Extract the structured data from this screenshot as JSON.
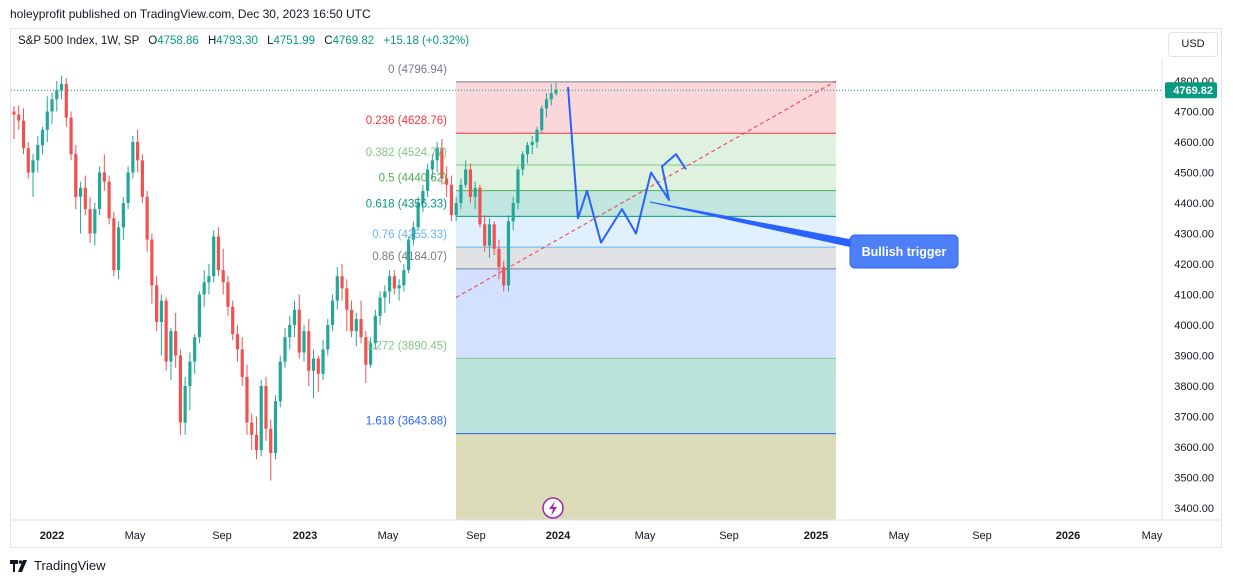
{
  "header": {
    "publisher": "holeyprofit published on TradingView.com, Dec 30, 2023 16:50 UTC"
  },
  "legend": {
    "symbol": "S&P 500 Index, 1W, SP",
    "open_label": "O",
    "open": "4758.86",
    "high_label": "H",
    "high": "4793.30",
    "low_label": "L",
    "low": "4751.99",
    "close_label": "C",
    "close": "4769.82",
    "change": "+15.18 (+0.32%)"
  },
  "currency_button": "USD",
  "footer": {
    "brand": "TradingView"
  },
  "chart_data": {
    "type": "candlestick",
    "symbol": "S&P 500 Index",
    "interval": "1W",
    "ylim": [
      3350,
      4830
    ],
    "y_ticks": [
      "3400.00",
      "3500.00",
      "3600.00",
      "3700.00",
      "3800.00",
      "3900.00",
      "4000.00",
      "4100.00",
      "4200.00",
      "4300.00",
      "4400.00",
      "4500.00",
      "4600.00",
      "4700.00",
      "4800.00"
    ],
    "x_ticks": [
      "2022",
      "May",
      "Sep",
      "2023",
      "May",
      "Sep",
      "2024",
      "May",
      "Sep",
      "2025",
      "May",
      "Sep",
      "2026",
      "May"
    ],
    "last_price": "4769.82",
    "colors": {
      "up": "#26a69a",
      "down": "#ef5350"
    },
    "candles_weekly": [
      [
        4700,
        4718,
        4610,
        4690
      ],
      [
        4690,
        4720,
        4640,
        4670
      ],
      [
        4670,
        4710,
        4560,
        4580
      ],
      [
        4580,
        4600,
        4480,
        4500
      ],
      [
        4500,
        4560,
        4420,
        4540
      ],
      [
        4540,
        4620,
        4500,
        4590
      ],
      [
        4590,
        4650,
        4560,
        4640
      ],
      [
        4640,
        4750,
        4600,
        4700
      ],
      [
        4700,
        4760,
        4660,
        4740
      ],
      [
        4740,
        4800,
        4700,
        4770
      ],
      [
        4770,
        4818,
        4740,
        4790
      ],
      [
        4790,
        4810,
        4650,
        4680
      ],
      [
        4680,
        4700,
        4540,
        4560
      ],
      [
        4560,
        4590,
        4380,
        4420
      ],
      [
        4420,
        4470,
        4300,
        4450
      ],
      [
        4450,
        4490,
        4360,
        4380
      ],
      [
        4380,
        4420,
        4270,
        4300
      ],
      [
        4300,
        4400,
        4260,
        4380
      ],
      [
        4380,
        4520,
        4360,
        4500
      ],
      [
        4500,
        4560,
        4440,
        4470
      ],
      [
        4470,
        4490,
        4330,
        4350
      ],
      [
        4350,
        4370,
        4160,
        4180
      ],
      [
        4180,
        4340,
        4150,
        4320
      ],
      [
        4320,
        4420,
        4280,
        4400
      ],
      [
        4400,
        4520,
        4380,
        4500
      ],
      [
        4500,
        4620,
        4480,
        4600
      ],
      [
        4600,
        4640,
        4500,
        4540
      ],
      [
        4540,
        4560,
        4400,
        4420
      ],
      [
        4420,
        4440,
        4240,
        4280
      ],
      [
        4280,
        4300,
        4070,
        4130
      ],
      [
        4130,
        4160,
        3980,
        4010
      ],
      [
        4010,
        4100,
        3900,
        4080
      ],
      [
        4080,
        4090,
        3850,
        3880
      ],
      [
        3880,
        3990,
        3820,
        3980
      ],
      [
        3980,
        4040,
        3860,
        3900
      ],
      [
        3900,
        3920,
        3640,
        3680
      ],
      [
        3680,
        3830,
        3640,
        3800
      ],
      [
        3800,
        3910,
        3720,
        3880
      ],
      [
        3880,
        3970,
        3840,
        3960
      ],
      [
        3960,
        4110,
        3940,
        4100
      ],
      [
        4100,
        4180,
        4060,
        4140
      ],
      [
        4140,
        4200,
        4100,
        4160
      ],
      [
        4160,
        4310,
        4140,
        4290
      ],
      [
        4290,
        4320,
        4160,
        4180
      ],
      [
        4180,
        4250,
        4100,
        4140
      ],
      [
        4140,
        4160,
        4030,
        4060
      ],
      [
        4060,
        4080,
        3950,
        3970
      ],
      [
        3970,
        4000,
        3880,
        3920
      ],
      [
        3920,
        3960,
        3800,
        3830
      ],
      [
        3830,
        3870,
        3640,
        3680
      ],
      [
        3680,
        3710,
        3590,
        3640
      ],
      [
        3640,
        3700,
        3560,
        3590
      ],
      [
        3590,
        3820,
        3570,
        3800
      ],
      [
        3800,
        3830,
        3620,
        3660
      ],
      [
        3660,
        3690,
        3490,
        3580
      ],
      [
        3580,
        3770,
        3560,
        3750
      ],
      [
        3750,
        3900,
        3730,
        3880
      ],
      [
        3880,
        3990,
        3860,
        3960
      ],
      [
        3960,
        4030,
        3920,
        4000
      ],
      [
        4000,
        4080,
        3960,
        4050
      ],
      [
        4050,
        4100,
        3890,
        3910
      ],
      [
        3910,
        4000,
        3880,
        3980
      ],
      [
        3980,
        4020,
        3800,
        3850
      ],
      [
        3850,
        3920,
        3760,
        3890
      ],
      [
        3890,
        3900,
        3780,
        3840
      ],
      [
        3840,
        3950,
        3820,
        3920
      ],
      [
        3920,
        4020,
        3900,
        4000
      ],
      [
        4000,
        4100,
        3980,
        4080
      ],
      [
        4080,
        4190,
        4050,
        4160
      ],
      [
        4160,
        4200,
        4080,
        4120
      ],
      [
        4120,
        4150,
        3980,
        4050
      ],
      [
        4050,
        4080,
        3960,
        3980
      ],
      [
        3980,
        4040,
        3930,
        4020
      ],
      [
        4020,
        4080,
        3940,
        3960
      ],
      [
        3960,
        3980,
        3810,
        3870
      ],
      [
        3870,
        3960,
        3860,
        3940
      ],
      [
        3940,
        4050,
        3920,
        4030
      ],
      [
        4030,
        4110,
        4000,
        4090
      ],
      [
        4090,
        4130,
        4040,
        4110
      ],
      [
        4110,
        4180,
        4070,
        4160
      ],
      [
        4160,
        4180,
        4100,
        4120
      ],
      [
        4120,
        4150,
        4080,
        4130
      ],
      [
        4130,
        4200,
        4110,
        4180
      ],
      [
        4180,
        4290,
        4170,
        4280
      ],
      [
        4280,
        4340,
        4260,
        4320
      ],
      [
        4320,
        4420,
        4310,
        4400
      ],
      [
        4400,
        4460,
        4370,
        4440
      ],
      [
        4440,
        4530,
        4420,
        4510
      ],
      [
        4510,
        4560,
        4480,
        4540
      ],
      [
        4540,
        4600,
        4500,
        4580
      ],
      [
        4580,
        4610,
        4460,
        4480
      ],
      [
        4480,
        4520,
        4420,
        4460
      ],
      [
        4460,
        4490,
        4340,
        4360
      ],
      [
        4360,
        4420,
        4340,
        4400
      ],
      [
        4400,
        4480,
        4380,
        4460
      ],
      [
        4460,
        4540,
        4450,
        4510
      ],
      [
        4510,
        4530,
        4400,
        4420
      ],
      [
        4420,
        4470,
        4380,
        4450
      ],
      [
        4450,
        4460,
        4320,
        4330
      ],
      [
        4330,
        4360,
        4240,
        4260
      ],
      [
        4260,
        4350,
        4220,
        4330
      ],
      [
        4330,
        4340,
        4230,
        4250
      ],
      [
        4250,
        4280,
        4150,
        4190
      ],
      [
        4190,
        4210,
        4110,
        4130
      ],
      [
        4130,
        4360,
        4110,
        4340
      ],
      [
        4340,
        4420,
        4310,
        4400
      ],
      [
        4400,
        4520,
        4380,
        4510
      ],
      [
        4510,
        4570,
        4490,
        4560
      ],
      [
        4560,
        4600,
        4530,
        4590
      ],
      [
        4590,
        4620,
        4560,
        4600
      ],
      [
        4600,
        4650,
        4580,
        4640
      ],
      [
        4640,
        4720,
        4630,
        4710
      ],
      [
        4710,
        4760,
        4680,
        4740
      ],
      [
        4740,
        4790,
        4720,
        4760
      ],
      [
        4758.86,
        4793.3,
        4751.99,
        4769.82
      ]
    ],
    "fibonacci": [
      {
        "label": "0 (4796.94)",
        "level": 4796.94,
        "line": "#787b86",
        "fill": null
      },
      {
        "label": "0.236 (4628.76)",
        "level": 4628.76,
        "line": "#f23645",
        "fill": "rgba(242,54,69,0.20)"
      },
      {
        "label": "0.382 (4524.77)",
        "level": 4524.77,
        "line": "#81c784",
        "fill": "rgba(129,199,132,0.25)"
      },
      {
        "label": "0.5 (4440.62)",
        "level": 4440.62,
        "line": "#4caf50",
        "fill": "rgba(76,175,80,0.18)"
      },
      {
        "label": "0.618 (4356.33)",
        "level": 4356.33,
        "line": "#089981",
        "fill": "rgba(8,153,129,0.25)"
      },
      {
        "label": "0.76 (4255.33)",
        "level": 4255.33,
        "line": "#64b5f6",
        "fill": "rgba(100,181,246,0.20)"
      },
      {
        "label": "0.86 (4184.07)",
        "level": 4184.07,
        "line": "#787b86",
        "fill": "rgba(120,123,134,0.22)"
      },
      {
        "label": "1.272 (3890.45)",
        "level": 3890.45,
        "line": "#81c784",
        "fill": "rgba(41,98,255,0.20)"
      },
      {
        "label": "1.618 (3643.88)",
        "level": 3643.88,
        "line": "#2962ff",
        "fill": "rgba(8,153,129,0.28)"
      },
      {
        "label": "",
        "level": 3350,
        "line": null,
        "fill": "rgba(153,153,51,0.35)"
      }
    ],
    "fib_label_colors": [
      "#787b86",
      "#f23645",
      "#81c784",
      "#4caf50",
      "#089981",
      "#64b5f6",
      "#787b86",
      "#81c784",
      "#2962ff"
    ],
    "projection_path": [
      4780,
      4350,
      4440,
      4270,
      4380,
      4300,
      4500,
      4410,
      4550,
      4510
    ],
    "trend_line": {
      "from": 4090,
      "to": 4800
    },
    "callout": {
      "text": "Bullish trigger",
      "color": "#2962ff"
    }
  }
}
